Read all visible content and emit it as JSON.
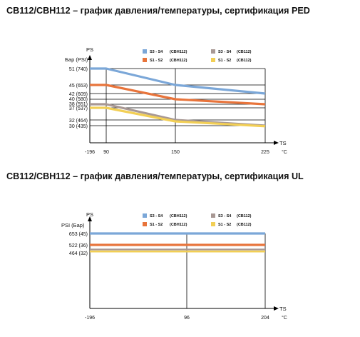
{
  "charts": [
    {
      "title": "CB112/CBH112 – график давления/температуры, сертификация PED",
      "y_axis_name": "PS",
      "y_unit_label": "Бар (PSI)",
      "x_axis_name": "TS",
      "x_unit_label": "°C",
      "y_ticks": [
        "51 (740)",
        "45 (653)",
        "42 (609)",
        "40 (580)",
        "38 (551)",
        "37 (537)",
        "32 (464)",
        "30 (435)"
      ],
      "x_ticks": [
        "-196",
        "90",
        "150",
        "225"
      ],
      "legend": [
        {
          "label": "S3 - S4",
          "model": "(CBH112)",
          "color": "#7ba7d8"
        },
        {
          "label": "S3 - S4",
          "model": "(CB112)",
          "color": "#a89894"
        },
        {
          "label": "S1 - S2",
          "model": "(CBH112)",
          "color": "#e8743b"
        },
        {
          "label": "S1 - S2",
          "model": "(CB112)",
          "color": "#f2cf55"
        }
      ]
    },
    {
      "title": "CB112/CBH112 – график давления/температуры, сертификация UL",
      "y_axis_name": "PS",
      "y_unit_label": "PSI (Бар)",
      "x_axis_name": "TS",
      "x_unit_label": "°C",
      "y_ticks": [
        "653 (45)",
        "522 (36)",
        "464 (32)"
      ],
      "x_ticks": [
        "-196",
        "96",
        "204"
      ],
      "legend": [
        {
          "label": "S3 - S4",
          "model": "(CBH112)",
          "color": "#7ba7d8"
        },
        {
          "label": "S3 - S4",
          "model": "(CB112)",
          "color": "#a89894"
        },
        {
          "label": "S1 - S2",
          "model": "(CBH112)",
          "color": "#e8743b"
        },
        {
          "label": "S1 - S2",
          "model": "(CB112)",
          "color": "#f2cf55"
        }
      ]
    }
  ],
  "chart_data": [
    {
      "type": "line",
      "title": "CB112/CBH112 – график давления/температуры, сертификация PED",
      "xlabel": "TS °C",
      "ylabel": "PS Бар (PSI)",
      "x_ticks": [
        -196,
        90,
        150,
        225
      ],
      "y_ticks": [
        51,
        45,
        42,
        40,
        38,
        37,
        32,
        30
      ],
      "grid": true,
      "legend_position": "top",
      "series": [
        {
          "name": "S3 - S4 (CBH112)",
          "color": "#7ba7d8",
          "x": [
            -196,
            90,
            150,
            225
          ],
          "y": [
            51,
            51,
            45,
            42
          ]
        },
        {
          "name": "S1 - S2 (CBH112)",
          "color": "#e8743b",
          "x": [
            -196,
            90,
            150,
            225
          ],
          "y": [
            45,
            45,
            40,
            38
          ]
        },
        {
          "name": "S3 - S4 (CB112)",
          "color": "#a89894",
          "x": [
            -196,
            90,
            150,
            225
          ],
          "y": [
            38,
            38,
            32,
            30
          ]
        },
        {
          "name": "S1 - S2 (CB112)",
          "color": "#f2cf55",
          "x": [
            -196,
            90,
            150,
            225
          ],
          "y": [
            37,
            37,
            31.5,
            29.8
          ]
        }
      ]
    },
    {
      "type": "line",
      "title": "CB112/CBH112 – график давления/температуры, сертификация UL",
      "xlabel": "TS °C",
      "ylabel": "PS PSI (Бар)",
      "x_ticks": [
        -196,
        96,
        204
      ],
      "y_ticks": [
        653,
        522,
        464
      ],
      "grid": true,
      "legend_position": "top",
      "series": [
        {
          "name": "S3 - S4 (CBH112)",
          "color": "#7ba7d8",
          "x": [
            -196,
            204
          ],
          "y": [
            653,
            653
          ]
        },
        {
          "name": "S1 - S2 (CBH112)",
          "color": "#e8743b",
          "x": [
            -196,
            204
          ],
          "y": [
            522,
            522
          ]
        },
        {
          "name": "S3 - S4 (CB112)",
          "color": "#a89894",
          "x": [
            -196,
            204
          ],
          "y": [
            464,
            464
          ]
        },
        {
          "name": "S1 - S2 (CB112)",
          "color": "#f2cf55",
          "x": [
            -196,
            204
          ],
          "y": [
            464,
            464
          ]
        }
      ]
    }
  ]
}
